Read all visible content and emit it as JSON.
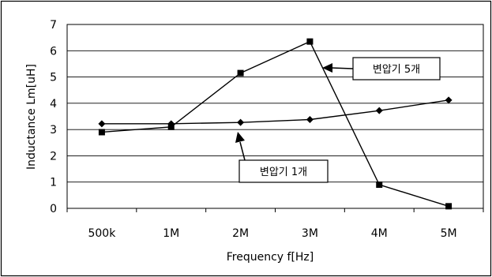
{
  "chart_data": {
    "type": "line",
    "categories": [
      "500k",
      "1M",
      "2M",
      "3M",
      "4M",
      "5M"
    ],
    "xlabel": "Frequency f[Hz]",
    "ylabel": "Inductance Lm[uH]",
    "ylim": [
      0,
      7
    ],
    "yticks": [
      "0",
      "1",
      "2",
      "3",
      "4",
      "5",
      "6",
      "7"
    ],
    "grid": "horizontal",
    "series": [
      {
        "name": "변압기 1개",
        "marker": "diamond",
        "color": "#000000",
        "values": [
          3.22,
          3.22,
          3.27,
          3.38,
          3.72,
          4.12
        ]
      },
      {
        "name": "변압기 5개",
        "marker": "square",
        "color": "#000000",
        "values": [
          2.9,
          3.1,
          5.15,
          6.35,
          0.9,
          0.08
        ]
      }
    ],
    "annotations": [
      {
        "text": "변압기 5개",
        "series": 1,
        "target_category": "3M"
      },
      {
        "text": "변압기 1개",
        "series": 0,
        "target_category": "2M"
      }
    ]
  }
}
